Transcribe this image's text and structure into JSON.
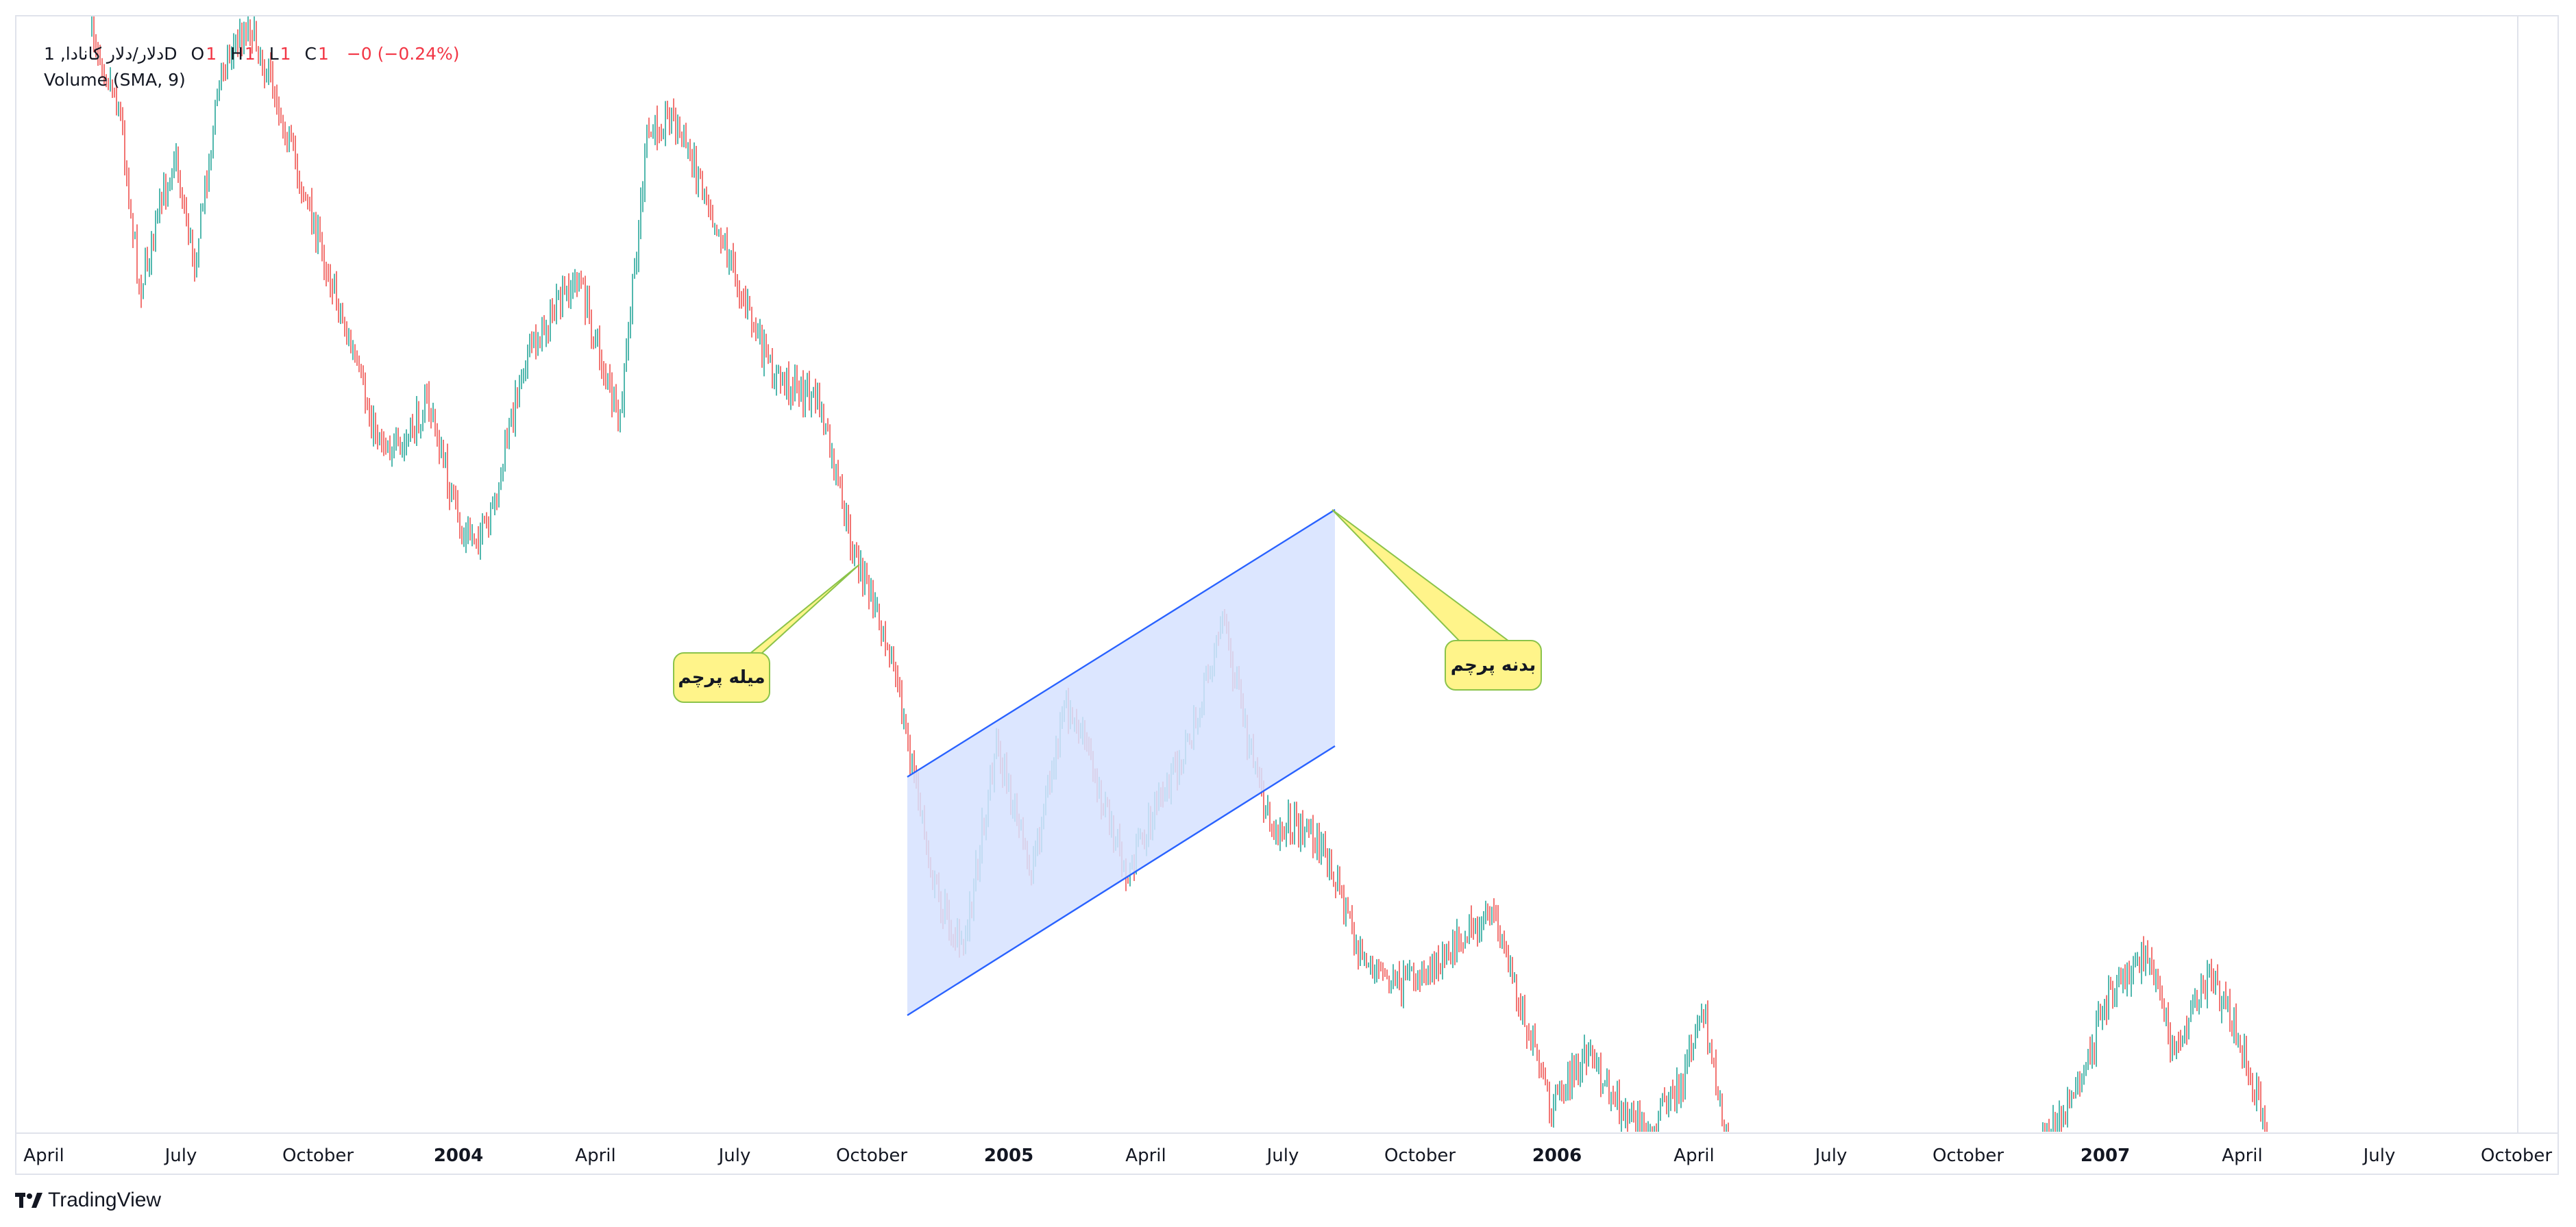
{
  "legend": {
    "symbol": "دلار/دلار کانادا, 1D",
    "open_label": "O",
    "open_value": "1",
    "high_label": "H",
    "high_value": "1",
    "low_label": "L",
    "low_value": "1",
    "close_label": "C",
    "close_value": "1",
    "change": "−0 (−0.24%)",
    "volume": "Volume (SMA, 9)"
  },
  "annotations": {
    "flagpole_label": "میله پرچم",
    "flag_body_label": "بدنه پرچم"
  },
  "branding": {
    "name": "TradingView"
  },
  "colors": {
    "up": "#26a69a",
    "down": "#ef5350",
    "channel_fill": "#d6e2ff",
    "channel_line": "#2962ff",
    "callout_fill": "#fff48a",
    "callout_border": "#8bc34a"
  },
  "chart_data": {
    "type": "candlestick",
    "x_tick_labels": [
      "April",
      "July",
      "October",
      "2004",
      "April",
      "July",
      "October",
      "2005",
      "April",
      "July",
      "October",
      "2006",
      "April",
      "July",
      "October",
      "2007",
      "April",
      "July",
      "October"
    ],
    "bold_ticks": [
      "2004",
      "2005",
      "2006",
      "2007"
    ],
    "price_path_keypoints": [
      {
        "date": "2003-04",
        "level": "high"
      },
      {
        "date": "2003-07",
        "level": "mid-high"
      },
      {
        "date": "2003-10",
        "level": "mid"
      },
      {
        "date": "2004-02",
        "level": "local-low"
      },
      {
        "date": "2004-05",
        "level": "local-high"
      },
      {
        "date": "2004-10",
        "level": "mid-low"
      },
      {
        "date": "2004-12",
        "level": "low"
      },
      {
        "date": "2005-06",
        "level": "mid-low"
      },
      {
        "date": "2005-08",
        "level": "mid-low"
      },
      {
        "date": "2006-05",
        "level": "lowest"
      },
      {
        "date": "2007-03",
        "level": "low"
      },
      {
        "date": "2007-04",
        "level": "lowest"
      }
    ],
    "channel": {
      "description": "rising bull-flag channel drawn on a downtrend",
      "start": "2004-11",
      "end": "2005-08"
    },
    "grid": false
  }
}
